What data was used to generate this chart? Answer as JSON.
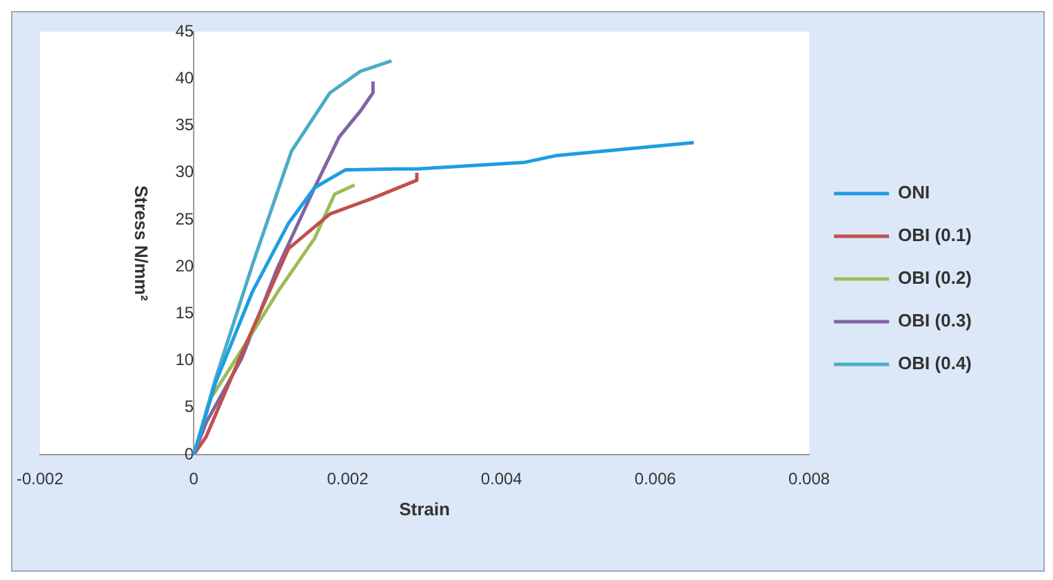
{
  "chart_data": {
    "type": "line",
    "xlabel": "Strain",
    "ylabel": "Stress N/mm²",
    "xlim": [
      -0.002,
      0.008
    ],
    "xticks": [
      -0.002,
      0,
      0.002,
      0.004,
      0.006,
      0.008
    ],
    "ylim": [
      0,
      45
    ],
    "yticks": [
      0,
      5,
      10,
      15,
      20,
      25,
      30,
      35,
      40,
      45
    ],
    "legend": "right",
    "marker": "none",
    "line_style": "solid",
    "series": [
      {
        "name": "ONI",
        "color": "#1f9de0",
        "x": [
          0,
          0.00028,
          0.00076,
          0.00123,
          0.00157,
          0.00197,
          0.0026,
          0.0029,
          0.0043,
          0.0047,
          0.0065
        ],
        "values": [
          0,
          7.6,
          17.3,
          24.6,
          28.4,
          30.3,
          30.4,
          30.4,
          31.1,
          31.8,
          33.2
        ]
      },
      {
        "name": "OBI (0.1)",
        "color": "#c0504d",
        "x": [
          0,
          0.00016,
          0.00062,
          0.00123,
          0.00177,
          0.0023,
          0.0029,
          0.0029
        ],
        "values": [
          0,
          1.9,
          10.7,
          21.9,
          25.6,
          27.2,
          29.2,
          30.0
        ]
      },
      {
        "name": "OBI (0.2)",
        "color": "#9bbb59",
        "x": [
          0,
          0.00022,
          0.00062,
          0.00109,
          0.00157,
          0.00183,
          0.00209
        ],
        "values": [
          0,
          6.0,
          11.1,
          17.3,
          23.0,
          27.7,
          28.7
        ]
      },
      {
        "name": "OBI (0.3)",
        "color": "#8064a2",
        "x": [
          0,
          0.00016,
          0.00062,
          0.00109,
          0.00157,
          0.00189,
          0.00217,
          0.00233,
          0.00233
        ],
        "values": [
          0,
          3.4,
          10.2,
          19.9,
          28.4,
          33.8,
          36.6,
          38.5,
          39.7
        ]
      },
      {
        "name": "OBI (0.4)",
        "color": "#4bacc6",
        "x": [
          0,
          0.00028,
          0.00077,
          0.00127,
          0.00177,
          0.00217,
          0.00257
        ],
        "values": [
          0,
          8.0,
          20.4,
          32.3,
          38.5,
          40.8,
          41.9
        ]
      }
    ]
  }
}
